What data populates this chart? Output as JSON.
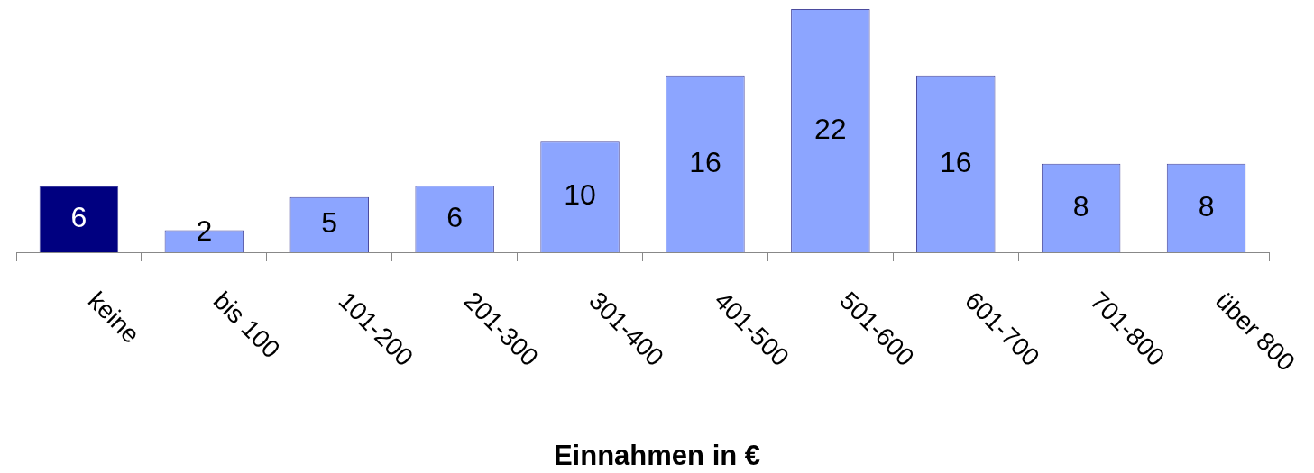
{
  "chart_data": {
    "type": "bar",
    "xlabel": "Einnahmen in €",
    "categories": [
      "keine",
      "bis 100",
      "101-200",
      "201-300",
      "301-400",
      "401-500",
      "501-600",
      "601-700",
      "701-800",
      "über 800"
    ],
    "values": [
      6,
      2,
      5,
      6,
      10,
      16,
      22,
      16,
      8,
      8
    ],
    "colors": [
      "#000080",
      "#8ca5ff",
      "#8ca5ff",
      "#8ca5ff",
      "#8ca5ff",
      "#8ca5ff",
      "#8ca5ff",
      "#8ca5ff",
      "#8ca5ff",
      "#8ca5ff"
    ],
    "data_labels": true,
    "legend": false,
    "grid": false
  }
}
